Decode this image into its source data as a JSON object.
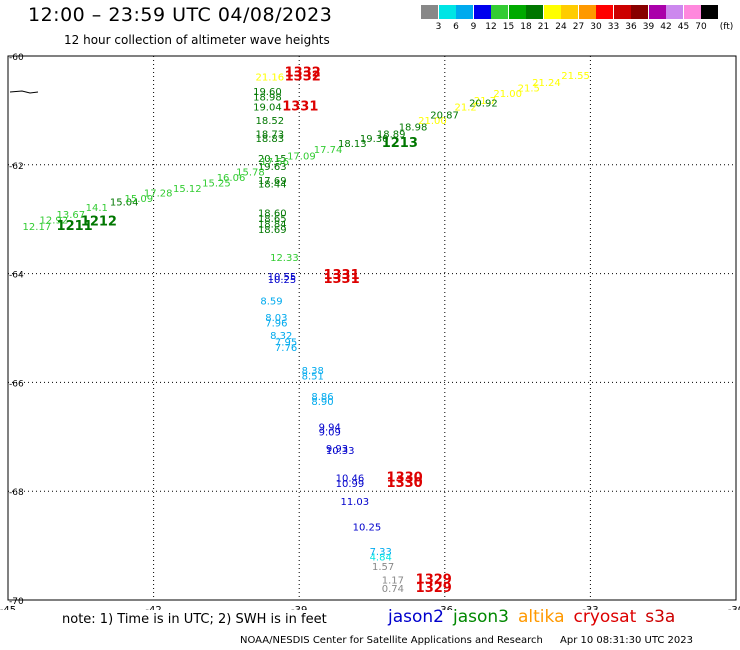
{
  "title": "12:00 – 23:59 UTC 04/08/2023",
  "subtitle": "12 hour collection of altimeter wave heights",
  "note": "note: 1) Time is in UTC; 2) SWH is in feet",
  "satellites": [
    {
      "name": "jason2",
      "color": "#0000cc"
    },
    {
      "name": "jason3",
      "color": "#008800"
    },
    {
      "name": "altika",
      "color": "#ff9900"
    },
    {
      "name": "cryosat",
      "color": "#dd0000"
    },
    {
      "name": "s3a",
      "color": "#cc0000"
    }
  ],
  "footer": {
    "agency": "NOAA/NESDIS Center for Satellite Applications and Research",
    "timestamp": "Apr 10 08:31:30 UTC 2023"
  },
  "colorbar": {
    "ticks": [
      "3",
      "6",
      "9",
      "12",
      "15",
      "18",
      "21",
      "24",
      "27",
      "30",
      "33",
      "36",
      "39",
      "42",
      "45",
      "70"
    ],
    "unit": "(ft)",
    "colors": [
      "#888888",
      "#00e5e5",
      "#00aaee",
      "#0000ee",
      "#33cc33",
      "#00aa00",
      "#007700",
      "#ffff00",
      "#ffcc00",
      "#ff9900",
      "#ff0000",
      "#cc0000",
      "#880000",
      "#aa00aa",
      "#cc88ee",
      "#ff88dd",
      "#000000"
    ]
  },
  "chart_data": {
    "type": "scatter",
    "xlim": [
      -45,
      -30
    ],
    "ylim": [
      -70,
      -60
    ],
    "xticks": [
      "-45",
      "-42",
      "-39",
      "-36",
      "-33",
      "-30"
    ],
    "yticks": [
      "-60",
      "-62",
      "-64",
      "-66",
      "-68",
      "-70"
    ],
    "grid": true,
    "labels": [
      {
        "t": "21.16",
        "x": -39.9,
        "y": -60.45,
        "c": "#ffff00"
      },
      {
        "t": "1332",
        "x": -39.3,
        "y": -60.45,
        "c": "#dd0000",
        "bold": true
      },
      {
        "t": "1332",
        "x": -39.3,
        "y": -60.38,
        "c": "#dd0000",
        "bold": true
      },
      {
        "t": "19.60",
        "x": -39.95,
        "y": -60.72,
        "c": "#007700"
      },
      {
        "t": "18.98",
        "x": -39.95,
        "y": -60.82,
        "c": "#007700"
      },
      {
        "t": "19.04",
        "x": -39.95,
        "y": -61.0,
        "c": "#007700"
      },
      {
        "t": "1331",
        "x": -39.35,
        "y": -61.0,
        "c": "#dd0000",
        "bold": true
      },
      {
        "t": "18.52",
        "x": -39.9,
        "y": -61.25,
        "c": "#007700"
      },
      {
        "t": "18.73",
        "x": -39.9,
        "y": -61.5,
        "c": "#007700"
      },
      {
        "t": "18.83",
        "x": -39.9,
        "y": -61.58,
        "c": "#007700"
      },
      {
        "t": "20.15",
        "x": -39.85,
        "y": -61.95,
        "c": "#007700"
      },
      {
        "t": "19.63",
        "x": -39.85,
        "y": -62.1,
        "c": "#007700"
      },
      {
        "t": "17.69",
        "x": -39.85,
        "y": -62.35,
        "c": "#007700"
      },
      {
        "t": "18.44",
        "x": -39.85,
        "y": -62.42,
        "c": "#007700"
      },
      {
        "t": "12.17",
        "x": -44.7,
        "y": -63.2,
        "c": "#33cc33"
      },
      {
        "t": "12.92",
        "x": -44.35,
        "y": -63.08,
        "c": "#33cc33"
      },
      {
        "t": "13.67",
        "x": -44.0,
        "y": -62.98,
        "c": "#33cc33"
      },
      {
        "t": "1211",
        "x": -44.0,
        "y": -63.2,
        "c": "#007700",
        "bold": true
      },
      {
        "t": "1212",
        "x": -43.5,
        "y": -63.12,
        "c": "#007700",
        "bold": true
      },
      {
        "t": "14.1",
        "x": -43.4,
        "y": -62.85,
        "c": "#33cc33"
      },
      {
        "t": "15.04",
        "x": -42.9,
        "y": -62.75,
        "c": "#007700"
      },
      {
        "t": "15.09",
        "x": -42.6,
        "y": -62.68,
        "c": "#33cc33"
      },
      {
        "t": "17.28",
        "x": -42.2,
        "y": -62.58,
        "c": "#33cc33"
      },
      {
        "t": "15.12",
        "x": -41.6,
        "y": -62.5,
        "c": "#33cc33"
      },
      {
        "t": "15.25",
        "x": -41.0,
        "y": -62.4,
        "c": "#33cc33"
      },
      {
        "t": "16.06",
        "x": -40.7,
        "y": -62.3,
        "c": "#33cc33"
      },
      {
        "t": "15.78",
        "x": -40.3,
        "y": -62.2,
        "c": "#33cc33"
      },
      {
        "t": "17.56",
        "x": -39.8,
        "y": -62.0,
        "c": "#33cc33"
      },
      {
        "t": "17.09",
        "x": -39.25,
        "y": -61.9,
        "c": "#33cc33"
      },
      {
        "t": "17.74",
        "x": -38.7,
        "y": -61.78,
        "c": "#33cc33"
      },
      {
        "t": "18.13",
        "x": -38.2,
        "y": -61.67,
        "c": "#007700"
      },
      {
        "t": "19.30",
        "x": -37.75,
        "y": -61.58,
        "c": "#007700"
      },
      {
        "t": "1213",
        "x": -37.3,
        "y": -61.67,
        "c": "#007700",
        "bold": true
      },
      {
        "t": "18.89",
        "x": -37.4,
        "y": -61.5,
        "c": "#007700"
      },
      {
        "t": "18.98",
        "x": -36.95,
        "y": -61.37,
        "c": "#007700"
      },
      {
        "t": "21.00",
        "x": -36.55,
        "y": -61.25,
        "c": "#ffff00"
      },
      {
        "t": "20.87",
        "x": -36.3,
        "y": -61.15,
        "c": "#007700"
      },
      {
        "t": "21.2",
        "x": -35.8,
        "y": -61.0,
        "c": "#ffff00"
      },
      {
        "t": "21.7",
        "x": -35.4,
        "y": -60.88,
        "c": "#ffff00"
      },
      {
        "t": "20.92",
        "x": -35.5,
        "y": -60.93,
        "c": "#007700"
      },
      {
        "t": "21.00",
        "x": -35.0,
        "y": -60.75,
        "c": "#ffff00"
      },
      {
        "t": "21.5",
        "x": -34.5,
        "y": -60.65,
        "c": "#ffff00"
      },
      {
        "t": "21.24",
        "x": -34.2,
        "y": -60.55,
        "c": "#ffff00"
      },
      {
        "t": "21.55",
        "x": -33.6,
        "y": -60.42,
        "c": "#ffff00"
      },
      {
        "t": "18.60",
        "x": -39.85,
        "y": -62.95,
        "c": "#007700"
      },
      {
        "t": "18.65",
        "x": -39.85,
        "y": -63.05,
        "c": "#007700"
      },
      {
        "t": "18.84",
        "x": -39.85,
        "y": -63.15,
        "c": "#007700"
      },
      {
        "t": "18.69",
        "x": -39.85,
        "y": -63.25,
        "c": "#007700"
      },
      {
        "t": "12.33",
        "x": -39.6,
        "y": -63.77,
        "c": "#33cc33"
      },
      {
        "t": "10.55",
        "x": -39.65,
        "y": -64.12,
        "c": "#0000cc"
      },
      {
        "t": "10.25",
        "x": -39.65,
        "y": -64.17,
        "c": "#0000cc"
      },
      {
        "t": "1331",
        "x": -38.5,
        "y": -64.17,
        "c": "#dd0000",
        "bold": true
      },
      {
        "t": "1331",
        "x": -38.5,
        "y": -64.1,
        "c": "#dd0000",
        "bold": true
      },
      {
        "t": "8.59",
        "x": -39.8,
        "y": -64.57,
        "c": "#00aaee"
      },
      {
        "t": "8.03",
        "x": -39.7,
        "y": -64.87,
        "c": "#00aaee"
      },
      {
        "t": "7.96",
        "x": -39.7,
        "y": -64.97,
        "c": "#00aaee"
      },
      {
        "t": "8.32",
        "x": -39.6,
        "y": -65.2,
        "c": "#00aaee"
      },
      {
        "t": "7.95",
        "x": -39.5,
        "y": -65.32,
        "c": "#00aaee"
      },
      {
        "t": "7.76",
        "x": -39.5,
        "y": -65.42,
        "c": "#00aaee"
      },
      {
        "t": "8.38",
        "x": -38.95,
        "y": -65.85,
        "c": "#00aaee"
      },
      {
        "t": "8.51",
        "x": -38.95,
        "y": -65.95,
        "c": "#00aaee"
      },
      {
        "t": "8.86",
        "x": -38.75,
        "y": -66.32,
        "c": "#00aaee"
      },
      {
        "t": "8.90",
        "x": -38.75,
        "y": -66.42,
        "c": "#00aaee"
      },
      {
        "t": "9.94",
        "x": -38.6,
        "y": -66.88,
        "c": "#0000cc"
      },
      {
        "t": "9.09",
        "x": -38.6,
        "y": -66.98,
        "c": "#0000cc"
      },
      {
        "t": "9.93",
        "x": -38.45,
        "y": -67.28,
        "c": "#0000cc"
      },
      {
        "t": "10.33",
        "x": -38.45,
        "y": -67.32,
        "c": "#0000cc"
      },
      {
        "t": "10.46",
        "x": -38.25,
        "y": -67.82,
        "c": "#0000cc"
      },
      {
        "t": "10.99",
        "x": -38.25,
        "y": -67.92,
        "c": "#0000cc"
      },
      {
        "t": "1330",
        "x": -37.2,
        "y": -67.82,
        "c": "#dd0000",
        "bold": true
      },
      {
        "t": "1330",
        "x": -37.2,
        "y": -67.92,
        "c": "#dd0000",
        "bold": true
      },
      {
        "t": "11.03",
        "x": -38.15,
        "y": -68.25,
        "c": "#0000cc"
      },
      {
        "t": "10.25",
        "x": -37.9,
        "y": -68.72,
        "c": "#0000cc"
      },
      {
        "t": "7.33",
        "x": -37.55,
        "y": -69.17,
        "c": "#00aaee"
      },
      {
        "t": "4.84",
        "x": -37.55,
        "y": -69.27,
        "c": "#00e5e5"
      },
      {
        "t": "1.57",
        "x": -37.5,
        "y": -69.45,
        "c": "#888888"
      },
      {
        "t": "1.17",
        "x": -37.3,
        "y": -69.7,
        "c": "#888888"
      },
      {
        "t": "0.74",
        "x": -37.3,
        "y": -69.85,
        "c": "#888888"
      },
      {
        "t": "1329",
        "x": -36.6,
        "y": -69.7,
        "c": "#dd0000",
        "bold": true
      },
      {
        "t": "1329",
        "x": -36.6,
        "y": -69.85,
        "c": "#dd0000",
        "bold": true
      }
    ]
  }
}
